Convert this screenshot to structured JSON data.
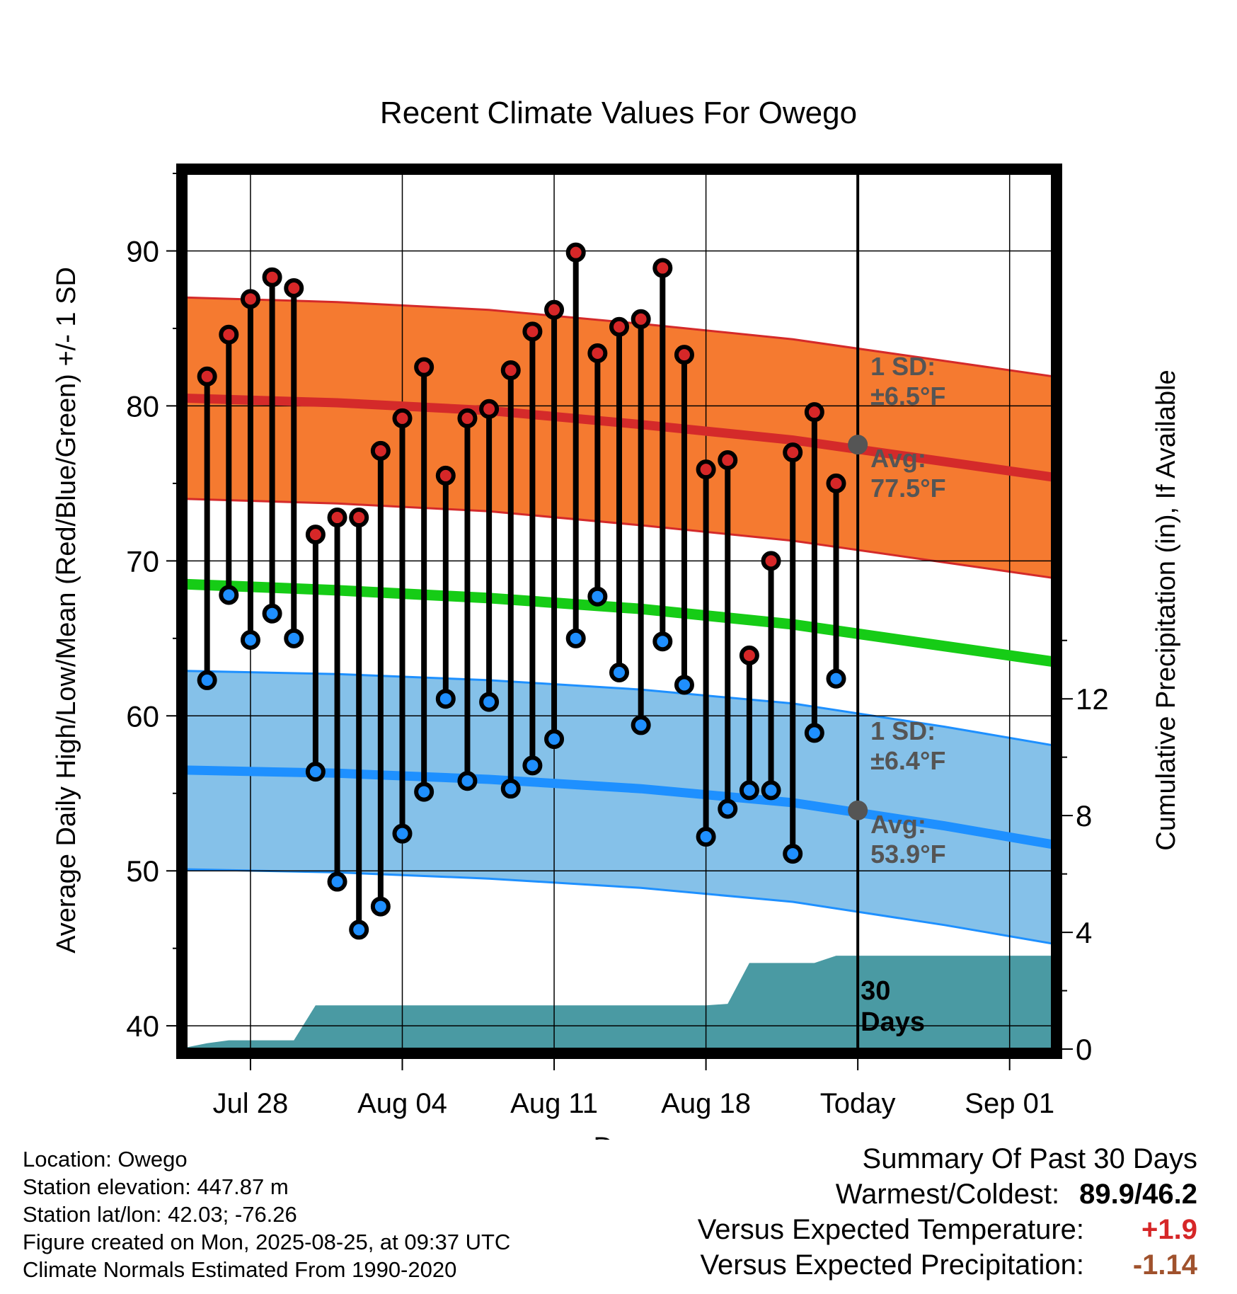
{
  "chart_data": {
    "type": "line",
    "title": "Recent Climate Values For Owego",
    "xlabel": "Day",
    "ylabel": "Average Daily High/Low/Mean (Red/Blue/Green) +/- 1 SD",
    "y2label": "Cumulative Precipitation (in), If Available",
    "ylim": [
      38.5,
      95
    ],
    "y2lim": [
      0,
      30
    ],
    "x_date_range": [
      "2025-07-25",
      "2025-09-03"
    ],
    "yticks": [
      40,
      50,
      60,
      70,
      80,
      90
    ],
    "y2ticks": [
      0,
      4,
      8,
      12
    ],
    "xticks": [
      {
        "date": "2025-07-28",
        "label": "Jul 28"
      },
      {
        "date": "2025-08-04",
        "label": "Aug 04"
      },
      {
        "date": "2025-08-11",
        "label": "Aug 11"
      },
      {
        "date": "2025-08-18",
        "label": "Aug 18"
      },
      {
        "date": "2025-08-25",
        "label": "Today"
      },
      {
        "date": "2025-09-01",
        "label": "Sep 01"
      }
    ],
    "today": "2025-08-25",
    "today_label": [
      "30",
      "Days"
    ],
    "grid": true,
    "series": [
      {
        "name": "High",
        "color": "#d62728",
        "dates": [
          "2025-07-26",
          "2025-07-27",
          "2025-07-28",
          "2025-07-29",
          "2025-07-30",
          "2025-07-31",
          "2025-08-01",
          "2025-08-02",
          "2025-08-03",
          "2025-08-04",
          "2025-08-05",
          "2025-08-06",
          "2025-08-07",
          "2025-08-08",
          "2025-08-09",
          "2025-08-10",
          "2025-08-11",
          "2025-08-12",
          "2025-08-13",
          "2025-08-14",
          "2025-08-15",
          "2025-08-16",
          "2025-08-17",
          "2025-08-18",
          "2025-08-19",
          "2025-08-20",
          "2025-08-21",
          "2025-08-22",
          "2025-08-23",
          "2025-08-24"
        ],
        "values": [
          81.9,
          84.6,
          86.9,
          88.3,
          87.6,
          71.7,
          72.8,
          72.8,
          77.1,
          79.2,
          82.5,
          75.5,
          79.2,
          79.8,
          82.3,
          84.8,
          86.2,
          89.9,
          83.4,
          85.1,
          85.6,
          88.9,
          83.3,
          75.9,
          76.5,
          63.9,
          70.0,
          77.0,
          79.6,
          75.0
        ]
      },
      {
        "name": "Low",
        "color": "#1f8fff",
        "dates": [
          "2025-07-26",
          "2025-07-27",
          "2025-07-28",
          "2025-07-29",
          "2025-07-30",
          "2025-07-31",
          "2025-08-01",
          "2025-08-02",
          "2025-08-03",
          "2025-08-04",
          "2025-08-05",
          "2025-08-06",
          "2025-08-07",
          "2025-08-08",
          "2025-08-09",
          "2025-08-10",
          "2025-08-11",
          "2025-08-12",
          "2025-08-13",
          "2025-08-14",
          "2025-08-15",
          "2025-08-16",
          "2025-08-17",
          "2025-08-18",
          "2025-08-19",
          "2025-08-20",
          "2025-08-21",
          "2025-08-22",
          "2025-08-23",
          "2025-08-24"
        ],
        "values": [
          62.3,
          67.8,
          64.9,
          66.6,
          65.0,
          56.4,
          49.3,
          46.2,
          47.7,
          52.4,
          55.1,
          61.1,
          55.8,
          60.9,
          55.3,
          56.8,
          58.5,
          65.0,
          67.7,
          62.8,
          59.4,
          64.8,
          62.0,
          52.2,
          54.0,
          55.2,
          55.2,
          51.1,
          58.9,
          62.4
        ]
      }
    ],
    "normals": {
      "dates": [
        "2025-07-25",
        "2025-08-01",
        "2025-08-08",
        "2025-08-15",
        "2025-08-22",
        "2025-08-29",
        "2025-09-03"
      ],
      "high_mean": [
        80.5,
        80.2,
        79.7,
        78.8,
        77.8,
        76.4,
        75.4
      ],
      "high_sd": 6.5,
      "mean": [
        68.5,
        68.1,
        67.6,
        66.9,
        65.9,
        64.5,
        63.5
      ],
      "low_mean": [
        56.5,
        56.3,
        55.9,
        55.3,
        54.4,
        52.9,
        51.7
      ],
      "low_sd": 6.4,
      "high_color": "#d42a2a",
      "high_band_color": "#f57a30",
      "mean_color": "#16cc16",
      "low_color": "#1e90ff",
      "low_band_color": "#85c1e9"
    },
    "precipitation": {
      "color": "#4a9aa3",
      "dates": [
        "2025-07-25",
        "2025-07-26",
        "2025-07-27",
        "2025-07-28",
        "2025-07-29",
        "2025-07-30",
        "2025-07-31",
        "2025-08-01",
        "2025-08-17",
        "2025-08-18",
        "2025-08-19",
        "2025-08-20",
        "2025-08-21",
        "2025-08-22",
        "2025-08-23",
        "2025-08-24",
        "2025-09-03"
      ],
      "values": [
        0.05,
        0.2,
        0.3,
        0.3,
        0.3,
        0.3,
        1.5,
        1.5,
        1.5,
        1.5,
        1.55,
        2.95,
        2.95,
        2.95,
        2.95,
        3.2,
        3.2
      ]
    },
    "annotations": {
      "high_sd_label": [
        "1 SD:",
        "±6.5°F"
      ],
      "high_avg_label": [
        "Avg:",
        "77.5°F"
      ],
      "high_avg_value": 77.5,
      "low_sd_label": [
        "1 SD:",
        "±6.4°F"
      ],
      "low_avg_label": [
        "Avg:",
        "53.9°F"
      ],
      "low_avg_value": 53.9
    }
  },
  "footer": {
    "location": "Location: Owego",
    "elevation": "Station elevation: 447.87 m",
    "latlon": "Station lat/lon: 42.03; -76.26",
    "created": "Figure created on Mon, 2025-08-25, at 09:37 UTC",
    "normals": "Climate Normals Estimated From 1990-2020"
  },
  "summary": {
    "title": "Summary Of Past 30 Days",
    "warm_cold_label": "Warmest/Coldest:",
    "warm_cold_value": "89.9/46.2",
    "temp_label": "Versus Expected Temperature:",
    "temp_value": "+1.9",
    "temp_color": "#d62728",
    "precip_label": "Versus Expected Precipitation:",
    "precip_value": "-1.14",
    "precip_color": "#a0522d"
  }
}
